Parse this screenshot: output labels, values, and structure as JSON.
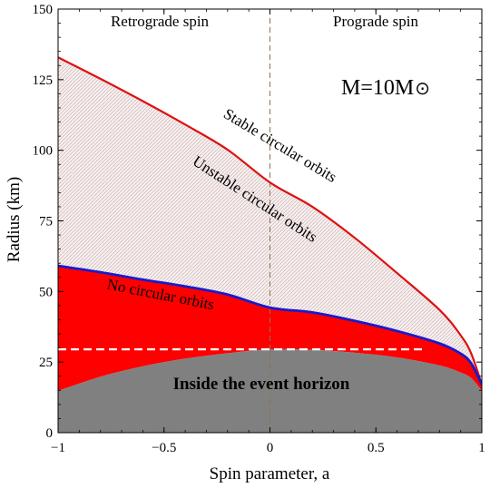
{
  "chart_data": {
    "type": "area",
    "title": "",
    "xlabel": "Spin parameter, a",
    "ylabel": "Radius (km)",
    "xlim": [
      -1,
      1
    ],
    "ylim": [
      0,
      150
    ],
    "xticks": [
      -1,
      -0.5,
      0,
      0.5,
      1
    ],
    "xtick_labels": [
      "−1",
      "−0.5",
      "0",
      "0.5",
      "1"
    ],
    "yticks": [
      0,
      25,
      50,
      75,
      100,
      125,
      150
    ],
    "ytick_labels": [
      "0",
      "25",
      "50",
      "75",
      "100",
      "125",
      "150"
    ],
    "grid": false,
    "mass_label": {
      "prefix": "M=10M",
      "symbol": "⊙"
    },
    "region_labels": {
      "retrograde": "Retrograde spin",
      "prograde": "Prograde spin",
      "stable": "Stable circular orbits",
      "unstable": "Unstable circular orbits",
      "no_orbits": "No circular orbits",
      "horizon": "Inside the event horizon"
    },
    "series": [
      {
        "name": "Stable circular orbits",
        "color": "#dd1111",
        "x": [
          -1,
          -0.8,
          -0.6,
          -0.4,
          -0.2,
          0,
          0.2,
          0.4,
          0.6,
          0.8,
          0.9,
          0.95,
          1.0
        ],
        "y": [
          132.9,
          125.3,
          117.4,
          109.1,
          100.2,
          88.6,
          80.0,
          69.0,
          56.5,
          43.5,
          34.5,
          28.0,
          17.0
        ]
      },
      {
        "name": "No circular orbits",
        "color": "#1a1acc",
        "x": [
          -1,
          -0.8,
          -0.6,
          -0.4,
          -0.2,
          0,
          0.2,
          0.4,
          0.6,
          0.8,
          0.9,
          0.95,
          1.0
        ],
        "y": [
          59.1,
          56.8,
          54.2,
          51.8,
          48.9,
          44.3,
          42.6,
          39.6,
          36.0,
          31.6,
          28.0,
          24.5,
          17.0
        ]
      },
      {
        "name": "Inside the event horizon",
        "color": "#808080",
        "x": [
          -1,
          -0.8,
          -0.6,
          -0.4,
          -0.2,
          0,
          0.2,
          0.4,
          0.6,
          0.8,
          0.9,
          0.95,
          1.0
        ],
        "y": [
          14.8,
          19.8,
          23.5,
          26.2,
          28.1,
          29.5,
          29.3,
          28.3,
          26.6,
          23.8,
          21.3,
          19.3,
          14.8
        ]
      }
    ],
    "reference_lines": [
      {
        "orientation": "horizontal",
        "value": 29.5,
        "x_end": 0.72,
        "color": "#ffffff",
        "style": "dashed"
      },
      {
        "orientation": "vertical",
        "value": 0,
        "color": "#8b7355",
        "style": "dashed"
      }
    ]
  }
}
